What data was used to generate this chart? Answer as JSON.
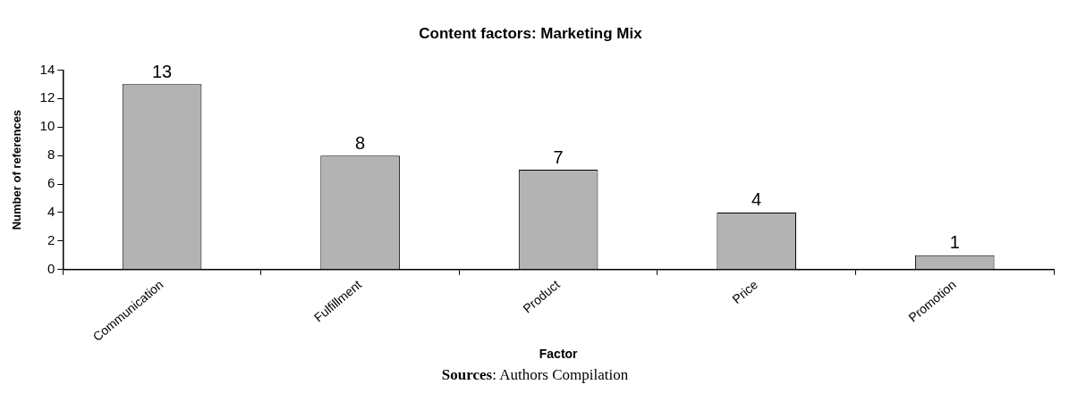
{
  "chart_data": {
    "type": "bar",
    "title": "Content factors: Marketing Mix",
    "xlabel": "Factor",
    "ylabel": "Number of references",
    "categories": [
      "Communication",
      "Fulfillment",
      "Product",
      "Price",
      "Promotion"
    ],
    "values": [
      13,
      8,
      7,
      4,
      1
    ],
    "color": "#b3b3b3",
    "ylim": [
      0,
      14
    ],
    "yticks": [
      0,
      2,
      4,
      6,
      8,
      10,
      12,
      14
    ],
    "grid": false,
    "legend": false,
    "data_labels": true,
    "annotations": [
      "Sources: Authors Compilation"
    ]
  }
}
